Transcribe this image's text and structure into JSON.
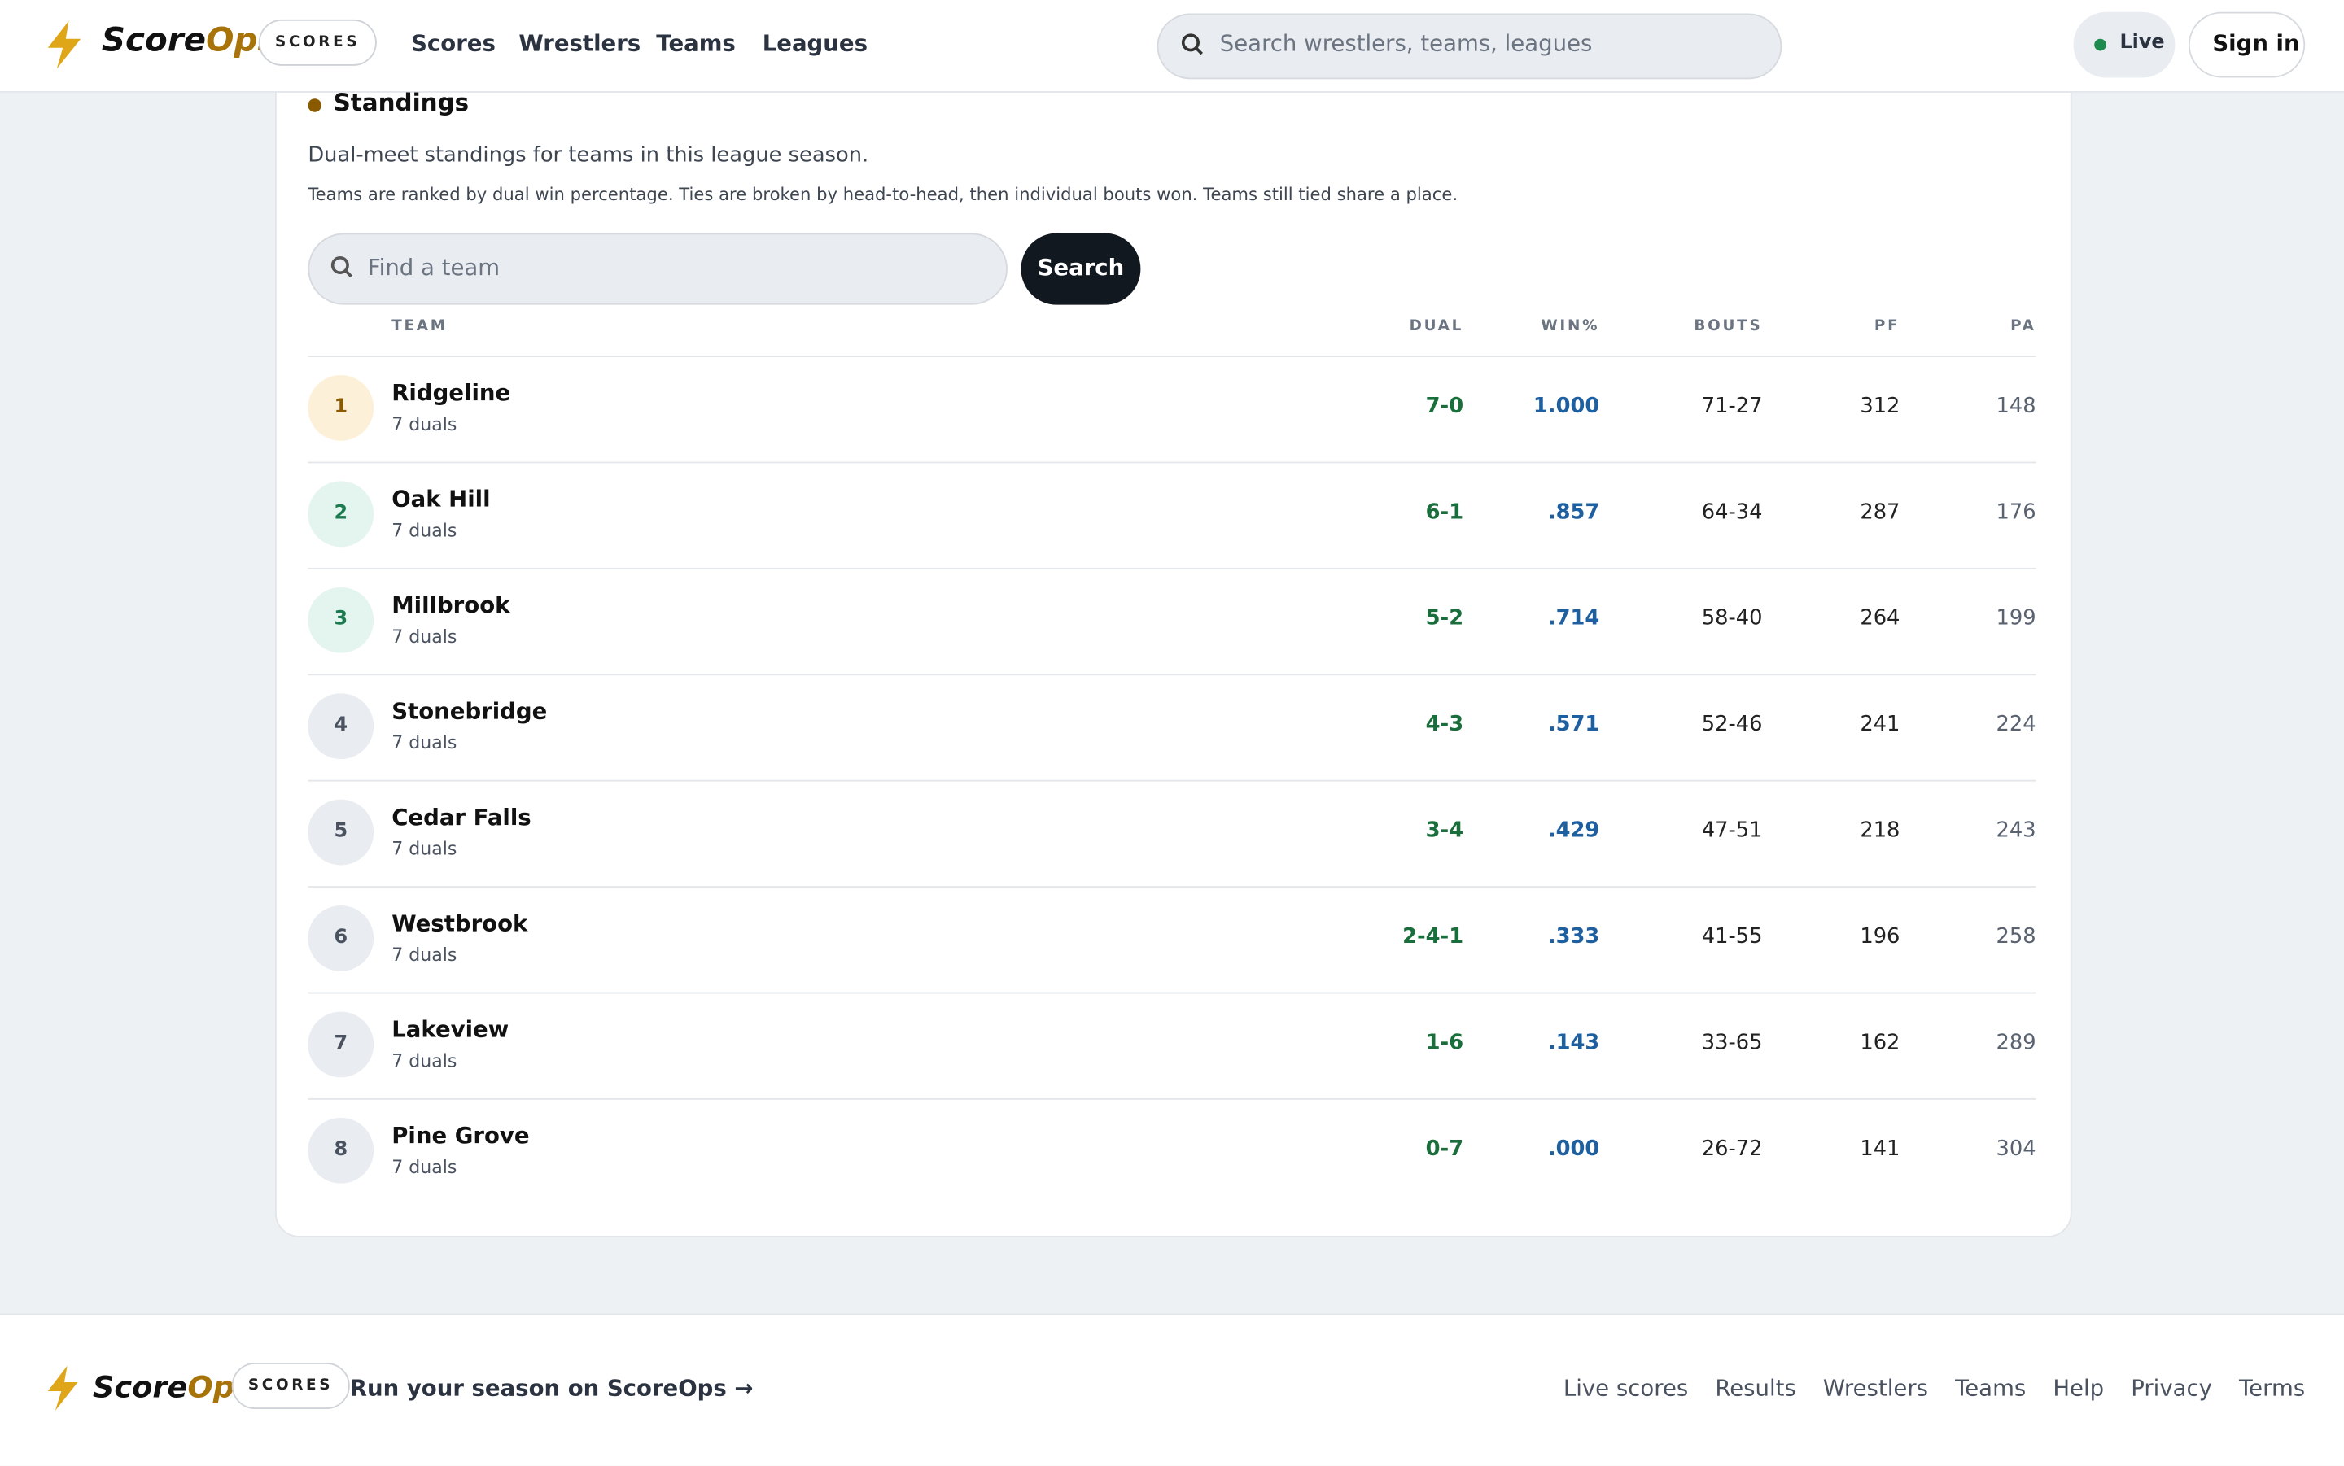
{
  "header": {
    "brand": [
      "Score",
      "Ops"
    ],
    "badge": "SCORES",
    "nav": [
      "Scores",
      "Wrestlers",
      "Teams",
      "Leagues"
    ],
    "search_placeholder": "Search wrestlers, teams, leagues",
    "live": "Live",
    "sign_in": "Sign in"
  },
  "section": {
    "title": "Standings",
    "description": "Dual-meet standings for teams in this league season.",
    "note": "Teams are ranked by dual win percentage. Ties are broken by head-to-head, then individual bouts won. Teams still tied share a place.",
    "find_placeholder": "Find a team",
    "search_button": "Search"
  },
  "table": {
    "columns": [
      "TEAM",
      "DUAL",
      "WIN%",
      "BOUTS",
      "PF",
      "PA"
    ],
    "rows": [
      [
        1,
        "Ridgeline",
        "7 duals",
        "7-0",
        "1.000",
        "71-27",
        312,
        148
      ],
      [
        2,
        "Oak Hill",
        "7 duals",
        "6-1",
        ".857",
        "64-34",
        287,
        176
      ],
      [
        3,
        "Millbrook",
        "7 duals",
        "5-2",
        ".714",
        "58-40",
        264,
        199
      ],
      [
        4,
        "Stonebridge",
        "7 duals",
        "4-3",
        ".571",
        "52-46",
        241,
        224
      ],
      [
        5,
        "Cedar Falls",
        "7 duals",
        "3-4",
        ".429",
        "47-51",
        218,
        243
      ],
      [
        6,
        "Westbrook",
        "7 duals",
        "2-4-1",
        ".333",
        "41-55",
        196,
        258
      ],
      [
        7,
        "Lakeview",
        "7 duals",
        "1-6",
        ".143",
        "33-65",
        162,
        289
      ],
      [
        8,
        "Pine Grove",
        "7 duals",
        "0-7",
        ".000",
        "26-72",
        141,
        304
      ]
    ]
  },
  "footer": {
    "brand": [
      "Score",
      "Ops"
    ],
    "badge": "SCORES",
    "cta": "Run your season on ScoreOps →",
    "links": [
      "Live scores",
      "Results",
      "Wrestlers",
      "Teams",
      "Help",
      "Privacy",
      "Terms"
    ]
  }
}
